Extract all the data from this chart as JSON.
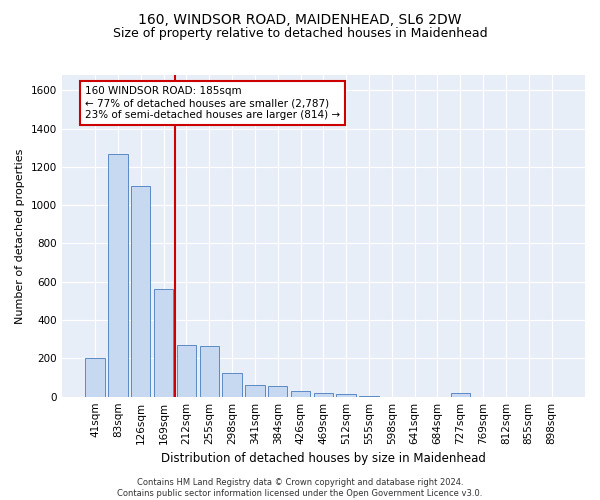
{
  "title1": "160, WINDSOR ROAD, MAIDENHEAD, SL6 2DW",
  "title2": "Size of property relative to detached houses in Maidenhead",
  "xlabel": "Distribution of detached houses by size in Maidenhead",
  "ylabel": "Number of detached properties",
  "categories": [
    "41sqm",
    "83sqm",
    "126sqm",
    "169sqm",
    "212sqm",
    "255sqm",
    "298sqm",
    "341sqm",
    "384sqm",
    "426sqm",
    "469sqm",
    "512sqm",
    "555sqm",
    "598sqm",
    "641sqm",
    "684sqm",
    "727sqm",
    "769sqm",
    "812sqm",
    "855sqm",
    "898sqm"
  ],
  "bar_values": [
    200,
    1270,
    1100,
    560,
    270,
    265,
    125,
    60,
    55,
    30,
    20,
    15,
    5,
    0,
    0,
    0,
    20,
    0,
    0,
    0,
    0
  ],
  "bar_color": "#c6d9f0",
  "bar_edge_color": "#5a8ac6",
  "vline_x": 3.5,
  "vline_color": "#cc0000",
  "annotation_line1": "160 WINDSOR ROAD: 185sqm",
  "annotation_line2": "← 77% of detached houses are smaller (2,787)",
  "annotation_line3": "23% of semi-detached houses are larger (814) →",
  "annotation_box_color": "#cc0000",
  "ylim": [
    0,
    1680
  ],
  "yticks": [
    0,
    200,
    400,
    600,
    800,
    1000,
    1200,
    1400,
    1600
  ],
  "bg_color": "#e8eef8",
  "footer": "Contains HM Land Registry data © Crown copyright and database right 2024.\nContains public sector information licensed under the Open Government Licence v3.0.",
  "title1_fontsize": 10,
  "title2_fontsize": 9,
  "xlabel_fontsize": 8.5,
  "ylabel_fontsize": 8,
  "annot_fontsize": 7.5,
  "tick_fontsize": 7.5
}
